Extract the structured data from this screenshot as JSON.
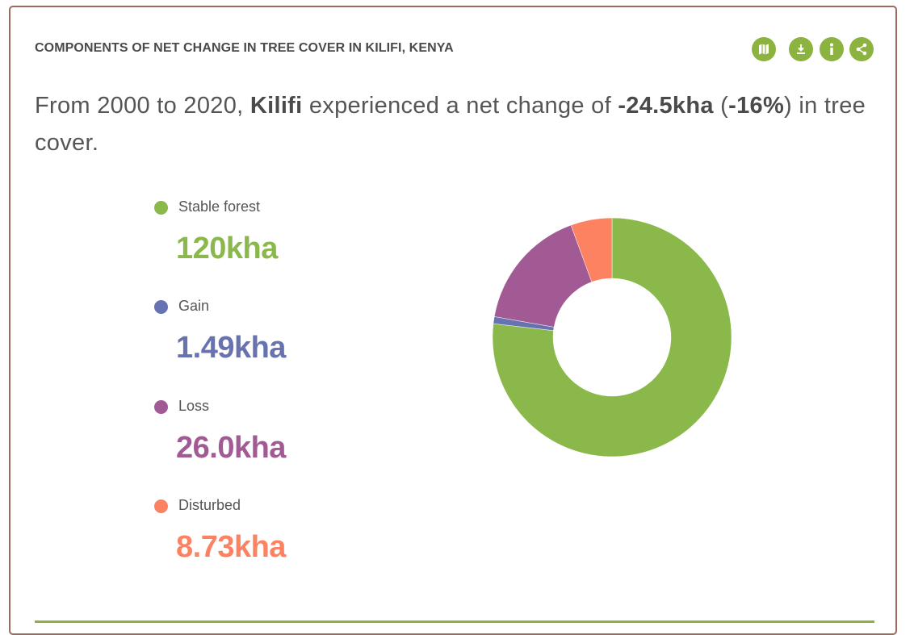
{
  "widget": {
    "title": "COMPONENTS OF NET CHANGE IN TREE COVER IN KILIFI, KENYA",
    "toolbar": [
      {
        "icon": "map-icon"
      },
      {
        "icon": "download-icon"
      },
      {
        "icon": "info-icon"
      },
      {
        "icon": "share-icon"
      }
    ]
  },
  "summary": {
    "prefix": "From 2000 to 2020, ",
    "location": "Kilifi",
    "middle": " experienced a net change of ",
    "change": "-24.5kha",
    "open_paren": " (",
    "percent": "-16%",
    "suffix": ") in tree cover."
  },
  "legend": [
    {
      "label": "Stable forest",
      "value": "120kha",
      "color": "#8bb84a"
    },
    {
      "label": "Gain",
      "value": "1.49kha",
      "color": "#6773b0"
    },
    {
      "label": "Loss",
      "value": "26.0kha",
      "color": "#a25a95"
    },
    {
      "label": "Disturbed",
      "value": "8.73kha",
      "color": "#fd8262"
    }
  ],
  "chart_data": {
    "type": "pie",
    "subtype": "donut",
    "unit": "kha",
    "categories": [
      "Stable forest",
      "Gain",
      "Loss",
      "Disturbed"
    ],
    "values": [
      120,
      1.49,
      26.0,
      8.73
    ],
    "colors": [
      "#8bb84a",
      "#6773b0",
      "#a25a95",
      "#fd8262"
    ],
    "start": "top",
    "direction": "counter-clockwise from Disturbed / clockwise from Stable forest"
  }
}
